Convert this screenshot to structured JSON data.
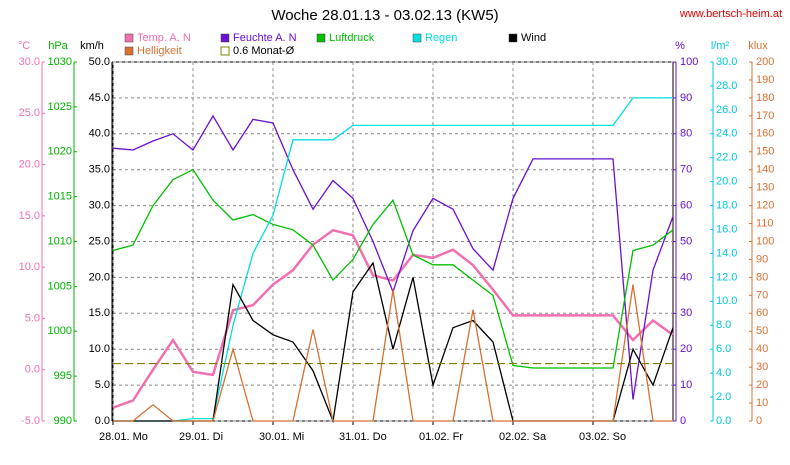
{
  "chart_data": {
    "type": "line",
    "title": "Woche 28.01.13 - 03.02.13 (KW5)",
    "source": "www.bertsch-heim.at",
    "xlim": [
      0,
      7
    ],
    "xticks": [
      {
        "value": 0,
        "label": "28.01. Mo"
      },
      {
        "value": 1,
        "label": "29.01. Di"
      },
      {
        "value": 2,
        "label": "30.01. Mi"
      },
      {
        "value": 3,
        "label": "31.01. Do"
      },
      {
        "value": 4,
        "label": "01.02. Fr"
      },
      {
        "value": 5,
        "label": "02.02. Sa"
      },
      {
        "value": 6,
        "label": "03.02. So"
      }
    ],
    "grid": true,
    "axes": [
      {
        "label": "°C",
        "color": "#f070b0",
        "lim": [
          -5,
          30
        ],
        "ticks": [
          {
            "value": -5,
            "label": "-5.0"
          },
          {
            "value": 0,
            "label": "0.0"
          },
          {
            "value": 5,
            "label": "5.0"
          },
          {
            "value": 10,
            "label": "10.0"
          },
          {
            "value": 15,
            "label": "15.0"
          },
          {
            "value": 20,
            "label": "20.0"
          },
          {
            "value": 25,
            "label": "25.0"
          },
          {
            "value": 30,
            "label": "30.0"
          }
        ]
      },
      {
        "label": "hPa",
        "color": "#00b000",
        "lim": [
          990,
          1030
        ],
        "ticks": [
          990,
          995,
          1000,
          1005,
          1010,
          1015,
          1020,
          1025,
          1030
        ]
      },
      {
        "label": "km/h",
        "color": "#000000",
        "lim": [
          0,
          50
        ],
        "ticks": [
          {
            "value": 0,
            "label": "0.0"
          },
          {
            "value": 5,
            "label": "5.0"
          },
          {
            "value": 10,
            "label": "10.0"
          },
          {
            "value": 15,
            "label": "15.0"
          },
          {
            "value": 20,
            "label": "20.0"
          },
          {
            "value": 25,
            "label": "25.0"
          },
          {
            "value": 30,
            "label": "30.0"
          },
          {
            "value": 35,
            "label": "35.0"
          },
          {
            "value": 40,
            "label": "40.0"
          },
          {
            "value": 45,
            "label": "45.0"
          },
          {
            "value": 50,
            "label": "50.0"
          }
        ]
      },
      {
        "label": "%",
        "color": "#6a10d0",
        "lim": [
          0,
          100
        ],
        "ticks": [
          0,
          10,
          20,
          30,
          40,
          50,
          60,
          70,
          80,
          90,
          100
        ]
      },
      {
        "label": "l/m²",
        "color": "#00c8d8",
        "lim": [
          0,
          30
        ],
        "ticks": [
          {
            "value": 0,
            "label": "0.0"
          },
          {
            "value": 2,
            "label": "2.0"
          },
          {
            "value": 4,
            "label": "4.0"
          },
          {
            "value": 6,
            "label": "6.0"
          },
          {
            "value": 8,
            "label": "8.0"
          },
          {
            "value": 10,
            "label": "10.0"
          },
          {
            "value": 12,
            "label": "12.0"
          },
          {
            "value": 14,
            "label": "14.0"
          },
          {
            "value": 16,
            "label": "16.0"
          },
          {
            "value": 18,
            "label": "18.0"
          },
          {
            "value": 20,
            "label": "20.0"
          },
          {
            "value": 22,
            "label": "22.0"
          },
          {
            "value": 24,
            "label": "24.0"
          },
          {
            "value": 26,
            "label": "26.0"
          },
          {
            "value": 28,
            "label": "28.0"
          },
          {
            "value": 30,
            "label": "30.0"
          }
        ]
      },
      {
        "label": "klux",
        "color": "#d87030",
        "lim": [
          0,
          200
        ],
        "ticks": [
          0,
          10,
          20,
          30,
          40,
          50,
          60,
          70,
          80,
          90,
          100,
          110,
          120,
          130,
          140,
          150,
          160,
          170,
          180,
          190,
          200
        ]
      }
    ],
    "x": [
      0,
      0.25,
      0.5,
      0.75,
      1,
      1.25,
      1.5,
      1.75,
      2,
      2.25,
      2.5,
      2.75,
      3,
      3.25,
      3.5,
      3.75,
      4,
      4.25,
      4.5,
      4.75,
      5,
      5.25,
      5.5,
      5.75,
      6,
      6.25,
      6.5,
      6.75,
      7
    ],
    "series": [
      {
        "name": "Temp. A. N",
        "color": "#f070b0",
        "axis": 0,
        "values": [
          -3.7,
          -3,
          0,
          2.9,
          -0.2,
          -0.5,
          5.8,
          6.3,
          8.3,
          9.7,
          12.2,
          13.6,
          13.1,
          9.2,
          8.7,
          11.2,
          10.9,
          11.7,
          10.2,
          7.8,
          5.3,
          5.3,
          5.3,
          5.3,
          5.3,
          5.3,
          2.9,
          4.8,
          3.4
        ]
      },
      {
        "name": "Feuchte A. N",
        "color": "#6a10d0",
        "axis": 3,
        "values": [
          76,
          75.5,
          78,
          80,
          75.5,
          85,
          75.5,
          84,
          83,
          70,
          59,
          67,
          62,
          50,
          36,
          53,
          62,
          59,
          48,
          42,
          62,
          73,
          73,
          73,
          73,
          73,
          6,
          42,
          57
        ]
      },
      {
        "name": "Luftdruck",
        "color": "#00c000",
        "axis": 1,
        "values": [
          1009,
          1009.6,
          1014,
          1016.9,
          1018,
          1014.6,
          1012.4,
          1013,
          1011.9,
          1011.3,
          1009.6,
          1005.7,
          1008,
          1011.9,
          1014.6,
          1008.5,
          1007.4,
          1007.4,
          1005.7,
          1004,
          996.2,
          995.9,
          995.9,
          995.9,
          995.9,
          995.9,
          1009,
          1009.6,
          1011.3
        ]
      },
      {
        "name": "Regen",
        "color": "#00e0e0",
        "axis": 4,
        "values": [
          0,
          0,
          0,
          0,
          0.2,
          0.2,
          8,
          14,
          17.2,
          23.5,
          23.5,
          23.5,
          24.7,
          24.7,
          24.7,
          24.7,
          24.7,
          24.7,
          24.7,
          24.7,
          24.7,
          24.7,
          24.7,
          24.7,
          24.7,
          24.7,
          27,
          27,
          27
        ]
      },
      {
        "name": "Wind",
        "color": "#000000",
        "axis": 2,
        "values": [
          0,
          0,
          0,
          0,
          0,
          0,
          19,
          14,
          12,
          11,
          7,
          0,
          18,
          22,
          10,
          20,
          5,
          13,
          14,
          11,
          0,
          0,
          0,
          0,
          0,
          0,
          10,
          5,
          13
        ]
      },
      {
        "name": "Helligkeit",
        "color": "#d87030",
        "axis": 5,
        "values": [
          0,
          0,
          9,
          0,
          0,
          0,
          40,
          0,
          0,
          0,
          51,
          0,
          0,
          0,
          73,
          0,
          0,
          0,
          62,
          0,
          0,
          0,
          0,
          0,
          0,
          0,
          76,
          0,
          0
        ]
      },
      {
        "name": "0.6 Monat-Ø",
        "color": "#808000",
        "axis": 0,
        "level": 0.6
      }
    ]
  }
}
